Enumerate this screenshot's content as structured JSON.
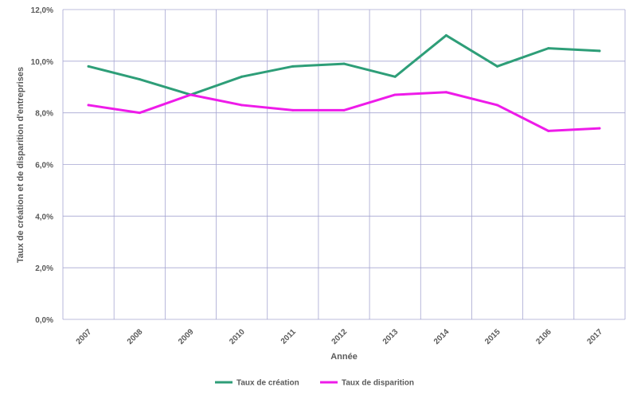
{
  "chart_data": {
    "type": "line",
    "title": "",
    "xlabel": "Année",
    "ylabel": "Taux de création et de disparition d'entreprises",
    "categories": [
      "2007",
      "2008",
      "2009",
      "2010",
      "2011",
      "2012",
      "2013",
      "2014",
      "2015",
      "2106",
      "2017"
    ],
    "yticks": [
      "0,0%",
      "2,0%",
      "4,0%",
      "6,0%",
      "8,0%",
      "10,0%",
      "12,0%"
    ],
    "ylim": [
      0,
      12
    ],
    "grid": true,
    "legend_position": "bottom",
    "series": [
      {
        "name": "Taux de création",
        "color": "#2e9e78",
        "values": [
          9.8,
          9.3,
          8.7,
          9.4,
          9.8,
          9.9,
          9.4,
          11.0,
          9.8,
          10.5,
          10.4
        ]
      },
      {
        "name": "Taux de disparition",
        "color": "#ee1be9",
        "values": [
          8.3,
          8.0,
          8.7,
          8.3,
          8.1,
          8.1,
          8.7,
          8.8,
          8.3,
          7.3,
          7.4
        ]
      }
    ]
  }
}
